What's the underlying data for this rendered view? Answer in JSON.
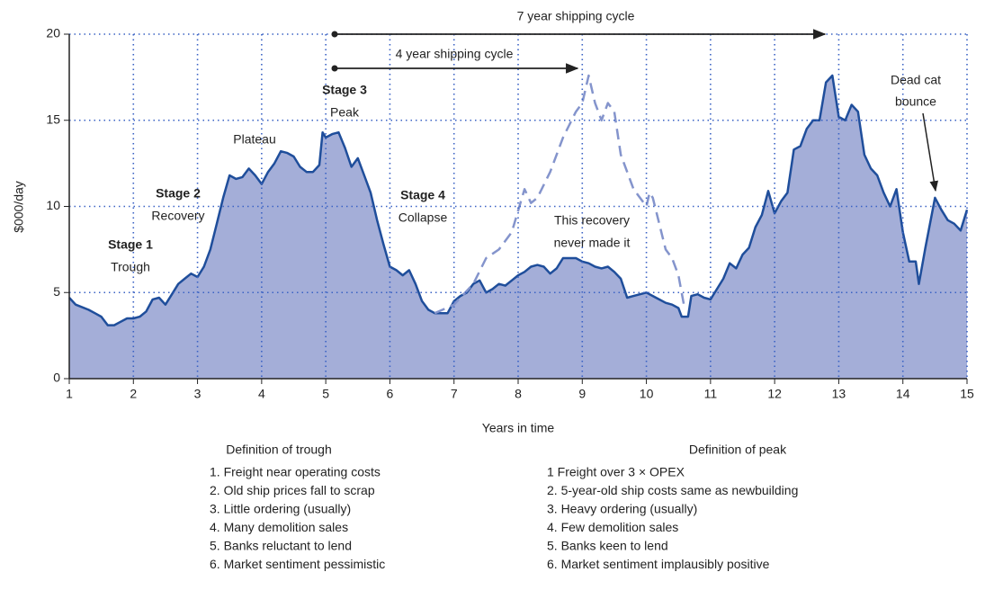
{
  "chart_data": {
    "type": "area",
    "x_label": "Years in time",
    "y_label": "$000/day",
    "xlim": [
      1,
      15
    ],
    "xticks": [
      1,
      2,
      3,
      4,
      5,
      6,
      7,
      8,
      9,
      10,
      11,
      12,
      13,
      14,
      15
    ],
    "ylim": [
      0,
      20
    ],
    "yticks": [
      0,
      5,
      10,
      15,
      20
    ],
    "grid": true,
    "annotations": [
      "Stage 1",
      "Trough",
      "Stage 2",
      "Recovery",
      "Plateau",
      "Stage 3",
      "Peak",
      "Stage 4",
      "Collapse",
      "This recovery",
      "never made it",
      "Dead cat",
      "bounce",
      "7 year shipping cycle",
      "4 year shipping cycle"
    ],
    "series": [
      {
        "color": "#1f4e9b",
        "fill": "#a4aed8",
        "style": "solid",
        "x": [
          1.0,
          1.1,
          1.3,
          1.4,
          1.5,
          1.6,
          1.7,
          1.8,
          1.9,
          2.0,
          2.1,
          2.2,
          2.3,
          2.4,
          2.5,
          2.6,
          2.7,
          2.8,
          2.9,
          3.0,
          3.1,
          3.2,
          3.3,
          3.4,
          3.5,
          3.6,
          3.7,
          3.8,
          3.9,
          4.0,
          4.1,
          4.2,
          4.3,
          4.4,
          4.5,
          4.6,
          4.7,
          4.8,
          4.9,
          4.95,
          5.0,
          5.1,
          5.2,
          5.3,
          5.4,
          5.5,
          5.6,
          5.7,
          5.8,
          5.9,
          6.0,
          6.1,
          6.2,
          6.3,
          6.4,
          6.5,
          6.6,
          6.7,
          6.8,
          6.9,
          7.0,
          7.1,
          7.2,
          7.3,
          7.4,
          7.5,
          7.6,
          7.7,
          7.8,
          7.9,
          8.0,
          8.1,
          8.2,
          8.3,
          8.4,
          8.5,
          8.6,
          8.7,
          8.8,
          8.9,
          9.0,
          9.1,
          9.2,
          9.3,
          9.4,
          9.5,
          9.6,
          9.7,
          9.8,
          9.9,
          10.0,
          10.1,
          10.2,
          10.3,
          10.4,
          10.5,
          10.55,
          10.65,
          10.7,
          10.8,
          10.9,
          11.0,
          11.1,
          11.2,
          11.3,
          11.4,
          11.5,
          11.6,
          11.7,
          11.8,
          11.9,
          12.0,
          12.1,
          12.2,
          12.3,
          12.4,
          12.5,
          12.6,
          12.7,
          12.8,
          12.9,
          13.0,
          13.1,
          13.2,
          13.3,
          13.4,
          13.5,
          13.6,
          13.7,
          13.8,
          13.9,
          14.0,
          14.1,
          14.2,
          14.25,
          14.35,
          14.5,
          14.6,
          14.7,
          14.8,
          14.9,
          15.0
        ],
        "values": [
          4.7,
          4.3,
          4.0,
          3.8,
          3.6,
          3.1,
          3.1,
          3.3,
          3.5,
          3.5,
          3.6,
          3.9,
          4.6,
          4.7,
          4.3,
          4.9,
          5.5,
          5.8,
          6.1,
          5.9,
          6.5,
          7.5,
          9.0,
          10.5,
          11.8,
          11.6,
          11.7,
          12.2,
          11.8,
          11.3,
          12.0,
          12.5,
          13.2,
          13.1,
          12.9,
          12.3,
          12.0,
          12.0,
          12.4,
          14.3,
          14.0,
          14.2,
          14.3,
          13.4,
          12.3,
          12.8,
          11.8,
          10.8,
          9.2,
          7.8,
          6.5,
          6.3,
          6.0,
          6.3,
          5.5,
          4.5,
          4.0,
          3.8,
          3.8,
          3.8,
          4.5,
          4.8,
          5.0,
          5.5,
          5.7,
          5.0,
          5.2,
          5.5,
          5.4,
          5.7,
          6.0,
          6.2,
          6.5,
          6.6,
          6.5,
          6.1,
          6.4,
          7.0,
          7.0,
          7.0,
          6.8,
          6.7,
          6.5,
          6.4,
          6.5,
          6.2,
          5.8,
          4.7,
          4.8,
          4.9,
          5.0,
          4.8,
          4.6,
          4.4,
          4.3,
          4.1,
          3.6,
          3.6,
          4.8,
          4.9,
          4.7,
          4.6,
          5.2,
          5.8,
          6.7,
          6.4,
          7.2,
          7.6,
          8.8,
          9.5,
          10.9,
          9.6,
          10.3,
          10.8,
          13.3,
          13.5,
          14.5,
          15.0,
          15.0,
          17.2,
          17.6,
          15.2,
          15.0,
          15.9,
          15.5,
          13.0,
          12.2,
          11.8,
          10.8,
          10.0,
          11.0,
          8.5,
          6.8,
          6.8,
          5.5,
          7.6,
          10.5,
          9.8,
          9.2,
          9.0,
          8.6,
          9.8
        ]
      },
      {
        "color": "#8494cc",
        "style": "dashed",
        "x": [
          6.7,
          7.0,
          7.3,
          7.5,
          7.7,
          7.9,
          8.1,
          8.2,
          8.3,
          8.5,
          8.7,
          8.9,
          9.0,
          9.1,
          9.2,
          9.3,
          9.4,
          9.5,
          9.6,
          9.8,
          10.0,
          10.05,
          10.1,
          10.3,
          10.4,
          10.5,
          10.6
        ],
        "values": [
          3.8,
          4.3,
          5.5,
          7.0,
          7.5,
          8.5,
          11.0,
          10.2,
          10.5,
          12.0,
          14.0,
          15.5,
          16.0,
          17.6,
          16.0,
          15.0,
          16.0,
          15.5,
          13.0,
          11.0,
          10.0,
          10.8,
          10.5,
          7.5,
          7.0,
          6.0,
          4.0
        ]
      }
    ]
  },
  "definitions": [
    {
      "title": "Definition of trough",
      "items": [
        "1. Freight near operating costs",
        "2. Old ship prices fall to scrap",
        "3. Little ordering (usually)",
        "4. Many demolition sales",
        "5. Banks reluctant to lend",
        "6. Market sentiment pessimistic"
      ]
    },
    {
      "title": "Definition of peak",
      "items": [
        "1  Freight over 3 × OPEX",
        "2. 5-year-old ship costs same as newbuilding",
        "3. Heavy ordering (usually)",
        "4. Few demolition sales",
        "5. Banks keen to lend",
        "6. Market sentiment implausibly positive"
      ]
    }
  ]
}
